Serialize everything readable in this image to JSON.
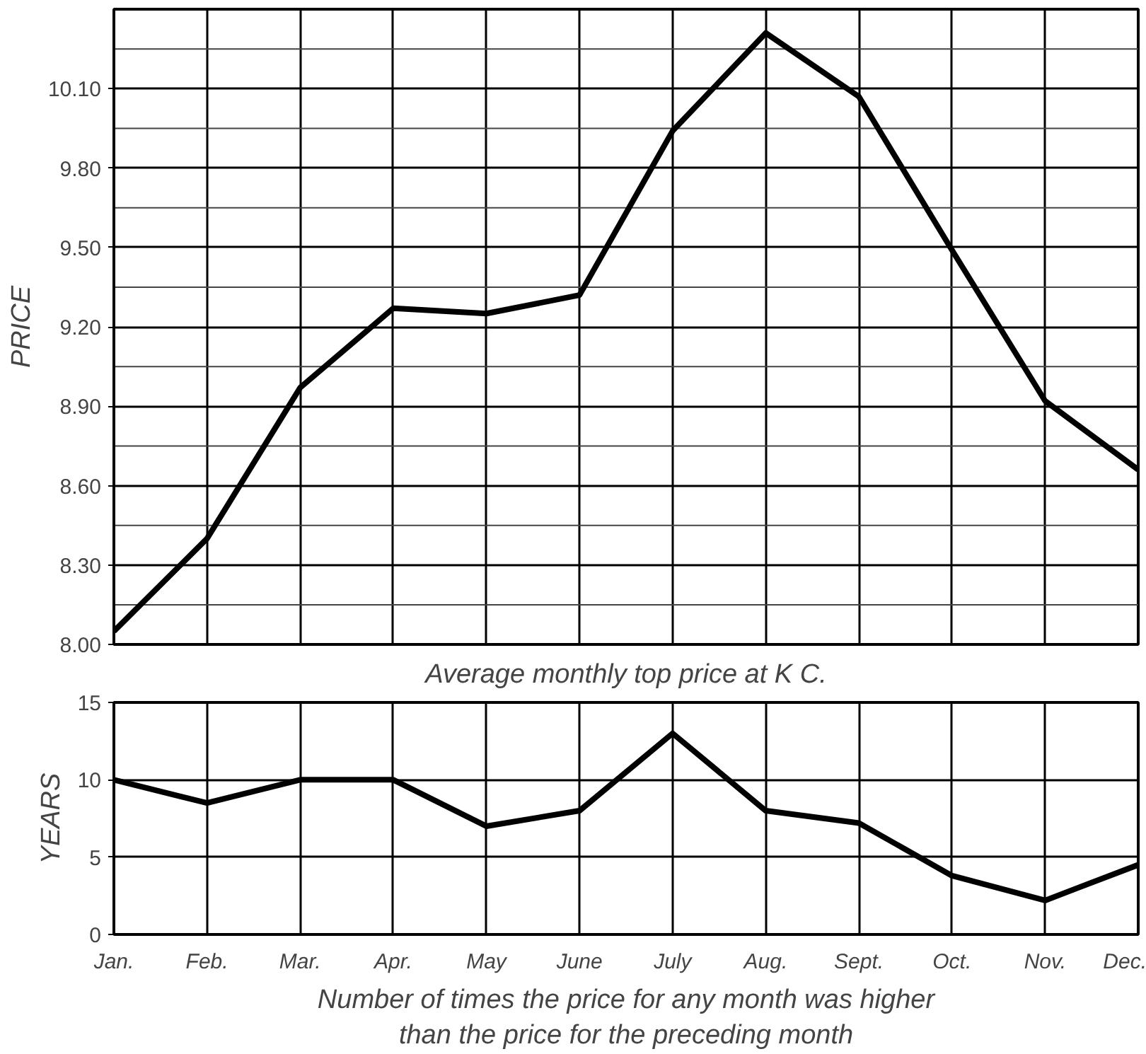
{
  "chart_data": [
    {
      "type": "line",
      "xlabel": "Average monthly top price at K C.",
      "ylabel": "PRICE",
      "categories": [
        "Jan.",
        "Feb.",
        "Mar.",
        "Apr.",
        "May",
        "June",
        "July",
        "Aug.",
        "Sept.",
        "Oct.",
        "Nov.",
        "Dec."
      ],
      "series": [
        {
          "color": "#000000",
          "values": [
            8.05,
            8.4,
            8.97,
            9.27,
            9.25,
            9.32,
            9.94,
            10.31,
            10.07,
            9.49,
            8.92,
            8.66
          ]
        }
      ],
      "ylim": [
        8.0,
        10.4
      ],
      "yticks": [
        {
          "value": 8.0,
          "label": "8.00"
        },
        {
          "value": 8.15,
          "label": null
        },
        {
          "value": 8.3,
          "label": "8.30"
        },
        {
          "value": 8.45,
          "label": null
        },
        {
          "value": 8.6,
          "label": "8.60"
        },
        {
          "value": 8.75,
          "label": null
        },
        {
          "value": 8.9,
          "label": "8.90"
        },
        {
          "value": 9.05,
          "label": null
        },
        {
          "value": 9.2,
          "label": "9.20"
        },
        {
          "value": 9.35,
          "label": null
        },
        {
          "value": 9.5,
          "label": "9.50"
        },
        {
          "value": 9.65,
          "label": null
        },
        {
          "value": 9.8,
          "label": "9.80"
        },
        {
          "value": 9.95,
          "label": null
        },
        {
          "value": 10.1,
          "label": "10.10"
        },
        {
          "value": 10.25,
          "label": null
        }
      ],
      "grid": true,
      "tick_labels": "y",
      "line_style": "solid",
      "marker": "none"
    },
    {
      "type": "line",
      "xlabel": "Number of times the price for any month was higher than the price for the preceding month",
      "ylabel": "YEARS",
      "categories": [
        "Jan.",
        "Feb.",
        "Mar.",
        "Apr.",
        "May",
        "June",
        "July",
        "Aug.",
        "Sept.",
        "Oct.",
        "Nov.",
        "Dec."
      ],
      "series": [
        {
          "color": "#000000",
          "values": [
            10,
            8.5,
            10,
            10,
            7,
            8,
            13,
            8,
            7.2,
            3.8,
            2.2,
            4.5
          ]
        }
      ],
      "ylim": [
        0,
        15
      ],
      "yticks": [
        0,
        5,
        10,
        15
      ],
      "grid": true,
      "line_style": "solid",
      "marker": "none"
    }
  ]
}
